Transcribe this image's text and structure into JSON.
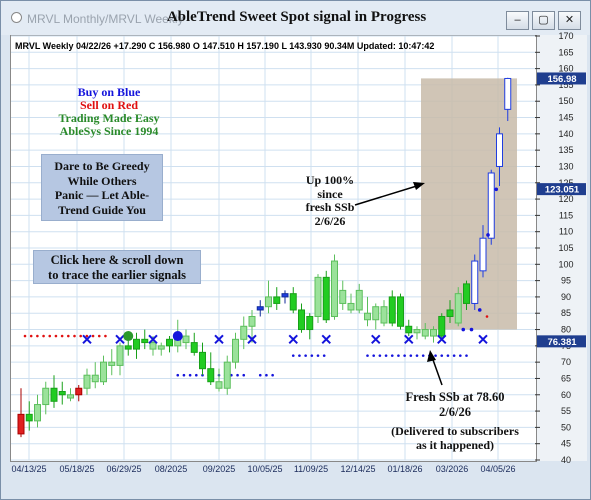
{
  "window": {
    "subtitle": "MRVL Monthly/MRVL Weekly",
    "title": "AbleTrend Sweet Spot signal in Progress",
    "buttons": {
      "minimize": "–",
      "restore": "▢",
      "close": "✕"
    }
  },
  "header_text": "MRVL  Weekly 04/22/26 +17.290 C 156.980 O 147.510 H 157.190 L 143.930 90.34M Updated: 10:47:42",
  "annotations": {
    "buy": "Buy on Blue",
    "sell": "Sell on Red",
    "trading": "Trading Made Easy",
    "since": "AbleSys Since 1994",
    "dare": [
      "Dare to Be Greedy",
      "While Others",
      "Panic — Let Able-",
      "Trend Guide You"
    ],
    "click": [
      "Click here & scroll down",
      "to trace the earlier signals"
    ],
    "up": [
      "Up 100%",
      "since",
      "fresh SSb",
      "2/6/26"
    ],
    "fresh": [
      "Fresh SSb at 78.60",
      "2/6/26"
    ],
    "delivered": [
      "(Delivered to subscribers",
      "as it happened)"
    ]
  },
  "colors": {
    "buy": "#1414dc",
    "sell": "#e01010",
    "trading": "#2a8a2a",
    "up_bar": "#9be29b",
    "down_bar": "#22cc22",
    "blue_bar": "#1f3de0",
    "red_bar": "#e02020",
    "shade": "#c8bba9",
    "price_tag": "#1f3e8f"
  },
  "chart_data": {
    "type": "candlestick",
    "ylim": [
      40,
      170
    ],
    "y_ticks": [
      40,
      45,
      50,
      55,
      60,
      65,
      70,
      75,
      80,
      85,
      90,
      95,
      100,
      105,
      110,
      115,
      120,
      125,
      130,
      135,
      140,
      145,
      150,
      155,
      160,
      165,
      170
    ],
    "x_ticks": [
      "04/13/25",
      "05/18/25",
      "06/29/25",
      "08/2025",
      "09/2025",
      "10/05/25",
      "11/09/25",
      "12/14/25",
      "01/18/26",
      "03/2026",
      "04/05/26"
    ],
    "price_tags": [
      156.98,
      123.051,
      76.381
    ],
    "bars": [
      {
        "o": 48,
        "h": 62,
        "l": 47,
        "c": 54,
        "t": "red"
      },
      {
        "o": 54,
        "h": 58,
        "l": 49,
        "c": 52,
        "t": "d"
      },
      {
        "o": 52,
        "h": 60,
        "l": 50,
        "c": 57,
        "t": "u"
      },
      {
        "o": 57,
        "h": 64,
        "l": 54,
        "c": 62,
        "t": "u"
      },
      {
        "o": 62,
        "h": 66,
        "l": 56,
        "c": 58,
        "t": "d"
      },
      {
        "o": 60,
        "h": 64,
        "l": 57,
        "c": 61,
        "t": "d"
      },
      {
        "o": 59,
        "h": 62,
        "l": 58,
        "c": 60,
        "t": "u"
      },
      {
        "o": 60,
        "h": 63,
        "l": 58,
        "c": 62,
        "t": "red"
      },
      {
        "o": 62,
        "h": 68,
        "l": 60,
        "c": 66,
        "t": "u"
      },
      {
        "o": 66,
        "h": 70,
        "l": 62,
        "c": 64,
        "t": "u"
      },
      {
        "o": 64,
        "h": 72,
        "l": 63,
        "c": 70,
        "t": "u"
      },
      {
        "o": 70,
        "h": 74,
        "l": 66,
        "c": 69,
        "t": "u"
      },
      {
        "o": 69,
        "h": 76,
        "l": 66,
        "c": 75,
        "t": "u"
      },
      {
        "o": 75,
        "h": 78,
        "l": 72,
        "c": 74,
        "t": "d"
      },
      {
        "o": 74,
        "h": 79,
        "l": 71,
        "c": 77,
        "t": "d"
      },
      {
        "o": 77,
        "h": 80,
        "l": 74,
        "c": 76,
        "t": "d"
      },
      {
        "o": 76,
        "h": 78,
        "l": 72,
        "c": 74,
        "t": "u"
      },
      {
        "o": 74,
        "h": 76,
        "l": 72,
        "c": 75,
        "t": "u"
      },
      {
        "o": 75,
        "h": 78,
        "l": 73,
        "c": 77,
        "t": "d"
      },
      {
        "o": 75,
        "h": 83,
        "l": 73,
        "c": 78,
        "t": "u"
      },
      {
        "o": 78,
        "h": 80,
        "l": 74,
        "c": 76,
        "t": "u"
      },
      {
        "o": 76,
        "h": 79,
        "l": 72,
        "c": 73,
        "t": "d"
      },
      {
        "o": 73,
        "h": 76,
        "l": 66,
        "c": 68,
        "t": "d"
      },
      {
        "o": 68,
        "h": 73,
        "l": 63,
        "c": 64,
        "t": "d"
      },
      {
        "o": 64,
        "h": 68,
        "l": 61,
        "c": 62,
        "t": "u"
      },
      {
        "o": 62,
        "h": 72,
        "l": 60,
        "c": 70,
        "t": "u"
      },
      {
        "o": 70,
        "h": 79,
        "l": 68,
        "c": 77,
        "t": "u"
      },
      {
        "o": 77,
        "h": 84,
        "l": 74,
        "c": 81,
        "t": "u"
      },
      {
        "o": 81,
        "h": 86,
        "l": 76,
        "c": 84,
        "t": "u"
      },
      {
        "o": 86,
        "h": 89,
        "l": 84,
        "c": 87,
        "t": "blue"
      },
      {
        "o": 87,
        "h": 95,
        "l": 85,
        "c": 90,
        "t": "u"
      },
      {
        "o": 90,
        "h": 93,
        "l": 86,
        "c": 88,
        "t": "d"
      },
      {
        "o": 90,
        "h": 92,
        "l": 88,
        "c": 91,
        "t": "blue"
      },
      {
        "o": 91,
        "h": 93,
        "l": 85,
        "c": 86,
        "t": "d"
      },
      {
        "o": 86,
        "h": 88,
        "l": 79,
        "c": 80,
        "t": "d"
      },
      {
        "o": 80,
        "h": 85,
        "l": 77,
        "c": 84,
        "t": "d"
      },
      {
        "o": 84,
        "h": 97,
        "l": 82,
        "c": 96,
        "t": "u"
      },
      {
        "o": 96,
        "h": 98,
        "l": 82,
        "c": 83,
        "t": "d"
      },
      {
        "o": 84,
        "h": 103,
        "l": 83,
        "c": 101,
        "t": "u"
      },
      {
        "o": 92,
        "h": 95,
        "l": 86,
        "c": 88,
        "t": "u"
      },
      {
        "o": 88,
        "h": 91,
        "l": 85,
        "c": 86,
        "t": "u"
      },
      {
        "o": 86,
        "h": 94,
        "l": 85,
        "c": 92,
        "t": "u"
      },
      {
        "o": 85,
        "h": 90,
        "l": 81,
        "c": 83,
        "t": "u"
      },
      {
        "o": 83,
        "h": 88,
        "l": 80,
        "c": 87,
        "t": "u"
      },
      {
        "o": 87,
        "h": 89,
        "l": 81,
        "c": 82,
        "t": "u"
      },
      {
        "o": 82,
        "h": 92,
        "l": 81,
        "c": 90,
        "t": "d"
      },
      {
        "o": 90,
        "h": 91,
        "l": 80,
        "c": 81,
        "t": "d"
      },
      {
        "o": 81,
        "h": 83,
        "l": 78,
        "c": 79,
        "t": "d"
      },
      {
        "o": 79,
        "h": 81,
        "l": 77,
        "c": 80,
        "t": "u"
      },
      {
        "o": 80,
        "h": 82,
        "l": 77,
        "c": 78,
        "t": "u"
      },
      {
        "o": 78,
        "h": 81,
        "l": 76,
        "c": 80,
        "t": "u"
      },
      {
        "o": 78,
        "h": 85,
        "l": 77,
        "c": 84,
        "t": "d"
      },
      {
        "o": 84,
        "h": 89,
        "l": 82,
        "c": 86,
        "t": "d"
      },
      {
        "o": 82,
        "h": 93,
        "l": 81,
        "c": 91,
        "t": "u"
      },
      {
        "o": 88,
        "h": 95,
        "l": 86,
        "c": 94,
        "t": "d"
      },
      {
        "o": 88,
        "h": 103,
        "l": 86,
        "c": 101,
        "t": "blue_o"
      },
      {
        "o": 98,
        "h": 112,
        "l": 96,
        "c": 108,
        "t": "blue_o"
      },
      {
        "o": 108,
        "h": 129,
        "l": 106,
        "c": 128,
        "t": "blue_o"
      },
      {
        "o": 130,
        "h": 142,
        "l": 124,
        "c": 140,
        "t": "blue_o"
      },
      {
        "o": 147.51,
        "h": 157.19,
        "l": 143.93,
        "c": 156.98,
        "t": "blue_o"
      }
    ],
    "red_dot_levels": [
      {
        "from": 0,
        "to": 10,
        "y": 78
      },
      {
        "from": 56,
        "to": 56,
        "y": 84
      }
    ],
    "blue_dot_segments": [
      {
        "from": 19,
        "to": 23,
        "y": 66
      },
      {
        "from": 24,
        "to": 27,
        "y": 66
      },
      {
        "from": 29,
        "to": 31,
        "y": 66
      },
      {
        "from": 33,
        "to": 37,
        "y": 72
      },
      {
        "from": 42,
        "to": 54,
        "y": 72
      }
    ],
    "blue_markers": [
      {
        "i": 57,
        "y": 123
      },
      {
        "i": 56,
        "y": 109
      },
      {
        "i": 55,
        "y": 86
      },
      {
        "i": 54,
        "y": 80
      },
      {
        "i": 53,
        "y": 80
      }
    ],
    "x_markers": [
      {
        "i": 8,
        "y": 77
      },
      {
        "i": 12,
        "y": 77
      },
      {
        "i": 16,
        "y": 77
      },
      {
        "i": 24,
        "y": 77
      },
      {
        "i": 28,
        "y": 77
      },
      {
        "i": 33,
        "y": 77
      },
      {
        "i": 37,
        "y": 77
      },
      {
        "i": 43,
        "y": 77
      },
      {
        "i": 47,
        "y": 77
      },
      {
        "i": 51,
        "y": 77
      },
      {
        "i": 56,
        "y": 77
      }
    ],
    "circles": [
      {
        "i": 13,
        "y": 78,
        "t": "green"
      },
      {
        "i": 19,
        "y": 78,
        "t": "blue"
      }
    ]
  }
}
